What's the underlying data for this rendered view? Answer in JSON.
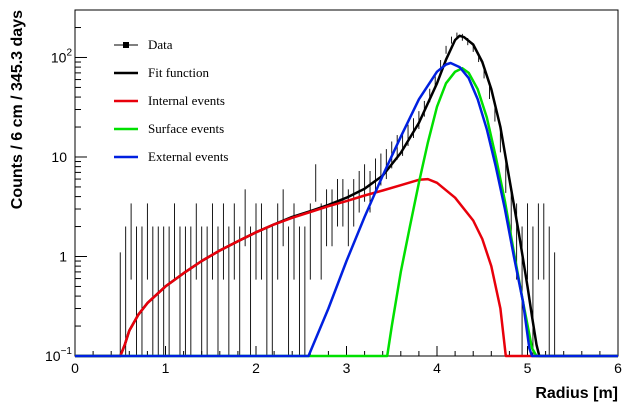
{
  "chart_data": {
    "type": "line",
    "xlabel": "Radius [m]",
    "ylabel": "Counts / 6 cm / 345.3 days",
    "xlim": [
      0,
      6
    ],
    "ylim": [
      0.1,
      300
    ],
    "yscale": "log",
    "grid": false,
    "legend_position": "top-left",
    "x_ticks": [
      "0",
      "1",
      "2",
      "3",
      "4",
      "5",
      "6"
    ],
    "y_ticks": [
      {
        "value": 0.1,
        "label": "10",
        "sup": "−1"
      },
      {
        "value": 1,
        "label": "1",
        "sup": ""
      },
      {
        "value": 10,
        "label": "10",
        "sup": ""
      },
      {
        "value": 100,
        "label": "10",
        "sup": "2"
      }
    ],
    "series": [
      {
        "name": "Data",
        "color": "#000000",
        "style": "points",
        "points": [
          [
            0.5,
            0.1
          ],
          [
            0.56,
            1
          ],
          [
            0.62,
            2
          ],
          [
            0.68,
            1
          ],
          [
            0.74,
            1
          ],
          [
            0.8,
            2
          ],
          [
            0.86,
            1
          ],
          [
            0.92,
            1
          ],
          [
            0.98,
            1
          ],
          [
            1.04,
            1
          ],
          [
            1.1,
            2
          ],
          [
            1.16,
            1
          ],
          [
            1.22,
            1
          ],
          [
            1.28,
            1
          ],
          [
            1.34,
            2
          ],
          [
            1.4,
            1
          ],
          [
            1.46,
            1
          ],
          [
            1.52,
            2
          ],
          [
            1.58,
            1
          ],
          [
            1.64,
            2
          ],
          [
            1.7,
            1
          ],
          [
            1.76,
            2
          ],
          [
            1.82,
            1
          ],
          [
            1.88,
            3
          ],
          [
            1.94,
            1
          ],
          [
            2.0,
            2
          ],
          [
            2.06,
            2
          ],
          [
            2.12,
            1
          ],
          [
            2.18,
            1
          ],
          [
            2.24,
            2
          ],
          [
            2.3,
            3
          ],
          [
            2.36,
            1
          ],
          [
            2.42,
            2
          ],
          [
            2.48,
            1
          ],
          [
            2.54,
            1
          ],
          [
            2.6,
            2
          ],
          [
            2.66,
            6
          ],
          [
            2.72,
            2
          ],
          [
            2.78,
            3
          ],
          [
            2.84,
            3
          ],
          [
            2.9,
            4
          ],
          [
            2.96,
            4
          ],
          [
            3.02,
            3
          ],
          [
            3.08,
            4
          ],
          [
            3.14,
            5
          ],
          [
            3.2,
            6
          ],
          [
            3.26,
            5
          ],
          [
            3.32,
            7
          ],
          [
            3.38,
            8
          ],
          [
            3.44,
            9
          ],
          [
            3.5,
            11
          ],
          [
            3.56,
            13
          ],
          [
            3.62,
            14
          ],
          [
            3.68,
            17
          ],
          [
            3.74,
            20
          ],
          [
            3.8,
            24
          ],
          [
            3.86,
            31
          ],
          [
            3.92,
            42
          ],
          [
            3.98,
            58
          ],
          [
            4.04,
            85
          ],
          [
            4.1,
            120
          ],
          [
            4.16,
            150
          ],
          [
            4.22,
            165
          ],
          [
            4.28,
            160
          ],
          [
            4.34,
            145
          ],
          [
            4.4,
            125
          ],
          [
            4.46,
            100
          ],
          [
            4.52,
            70
          ],
          [
            4.58,
            45
          ],
          [
            4.64,
            28
          ],
          [
            4.7,
            15
          ],
          [
            4.76,
            7
          ],
          [
            4.82,
            3
          ],
          [
            4.88,
            2
          ],
          [
            4.94,
            1
          ],
          [
            5.0,
            2
          ],
          [
            5.06,
            1
          ],
          [
            5.12,
            2
          ],
          [
            5.18,
            2
          ],
          [
            5.24,
            1
          ],
          [
            5.3,
            0.1
          ]
        ]
      },
      {
        "name": "Fit function",
        "color": "#000000",
        "style": "line",
        "points": [
          [
            0.0,
            0.1
          ],
          [
            0.5,
            0.1
          ],
          [
            0.55,
            0.13
          ],
          [
            0.6,
            0.18
          ],
          [
            0.7,
            0.26
          ],
          [
            0.8,
            0.34
          ],
          [
            1.0,
            0.5
          ],
          [
            1.2,
            0.68
          ],
          [
            1.4,
            0.9
          ],
          [
            1.6,
            1.15
          ],
          [
            1.8,
            1.42
          ],
          [
            2.0,
            1.75
          ],
          [
            2.2,
            2.1
          ],
          [
            2.4,
            2.5
          ],
          [
            2.6,
            2.85
          ],
          [
            2.8,
            3.3
          ],
          [
            3.0,
            3.9
          ],
          [
            3.2,
            4.8
          ],
          [
            3.4,
            6.5
          ],
          [
            3.6,
            11
          ],
          [
            3.8,
            22
          ],
          [
            4.0,
            55
          ],
          [
            4.1,
            95
          ],
          [
            4.2,
            150
          ],
          [
            4.25,
            165
          ],
          [
            4.3,
            160
          ],
          [
            4.4,
            135
          ],
          [
            4.5,
            90
          ],
          [
            4.6,
            48
          ],
          [
            4.7,
            20
          ],
          [
            4.8,
            6
          ],
          [
            4.9,
            1.8
          ],
          [
            5.0,
            0.5
          ],
          [
            5.05,
            0.25
          ],
          [
            5.1,
            0.13
          ],
          [
            5.13,
            0.1
          ],
          [
            6.0,
            0.1
          ]
        ]
      },
      {
        "name": "Internal events",
        "color": "#e8000b",
        "style": "line",
        "points": [
          [
            0.0,
            0.1
          ],
          [
            0.5,
            0.1
          ],
          [
            0.55,
            0.13
          ],
          [
            0.6,
            0.18
          ],
          [
            0.7,
            0.26
          ],
          [
            0.8,
            0.34
          ],
          [
            1.0,
            0.5
          ],
          [
            1.2,
            0.68
          ],
          [
            1.4,
            0.9
          ],
          [
            1.6,
            1.15
          ],
          [
            1.8,
            1.42
          ],
          [
            2.0,
            1.75
          ],
          [
            2.2,
            2.1
          ],
          [
            2.4,
            2.45
          ],
          [
            2.6,
            2.8
          ],
          [
            2.8,
            3.2
          ],
          [
            3.0,
            3.6
          ],
          [
            3.2,
            4.1
          ],
          [
            3.4,
            4.6
          ],
          [
            3.6,
            5.2
          ],
          [
            3.8,
            5.9
          ],
          [
            3.9,
            6.0
          ],
          [
            4.0,
            5.5
          ],
          [
            4.2,
            3.9
          ],
          [
            4.4,
            2.3
          ],
          [
            4.5,
            1.5
          ],
          [
            4.6,
            0.8
          ],
          [
            4.7,
            0.3
          ],
          [
            4.76,
            0.1
          ],
          [
            6.0,
            0.1
          ]
        ]
      },
      {
        "name": "Surface events",
        "color": "#00e000",
        "style": "line",
        "points": [
          [
            0.0,
            0.1
          ],
          [
            3.45,
            0.1
          ],
          [
            3.5,
            0.2
          ],
          [
            3.6,
            0.7
          ],
          [
            3.7,
            2.0
          ],
          [
            3.8,
            5.5
          ],
          [
            3.9,
            14
          ],
          [
            4.0,
            32
          ],
          [
            4.1,
            55
          ],
          [
            4.2,
            72
          ],
          [
            4.28,
            78
          ],
          [
            4.35,
            70
          ],
          [
            4.45,
            48
          ],
          [
            4.55,
            25
          ],
          [
            4.65,
            10
          ],
          [
            4.75,
            3.6
          ],
          [
            4.85,
            1.1
          ],
          [
            4.95,
            0.35
          ],
          [
            5.05,
            0.12
          ],
          [
            5.1,
            0.1
          ],
          [
            6.0,
            0.1
          ]
        ]
      },
      {
        "name": "External events",
        "color": "#0020e0",
        "style": "line",
        "points": [
          [
            0.0,
            0.1
          ],
          [
            2.58,
            0.1
          ],
          [
            2.8,
            0.3
          ],
          [
            3.0,
            0.9
          ],
          [
            3.2,
            2.5
          ],
          [
            3.4,
            6.5
          ],
          [
            3.6,
            16
          ],
          [
            3.8,
            38
          ],
          [
            4.0,
            72
          ],
          [
            4.1,
            85
          ],
          [
            4.15,
            88
          ],
          [
            4.25,
            80
          ],
          [
            4.35,
            62
          ],
          [
            4.45,
            38
          ],
          [
            4.55,
            19
          ],
          [
            4.65,
            8
          ],
          [
            4.75,
            3
          ],
          [
            4.85,
            1.0
          ],
          [
            4.95,
            0.35
          ],
          [
            5.02,
            0.12
          ],
          [
            5.05,
            0.1
          ],
          [
            6.0,
            0.1
          ]
        ]
      }
    ]
  }
}
